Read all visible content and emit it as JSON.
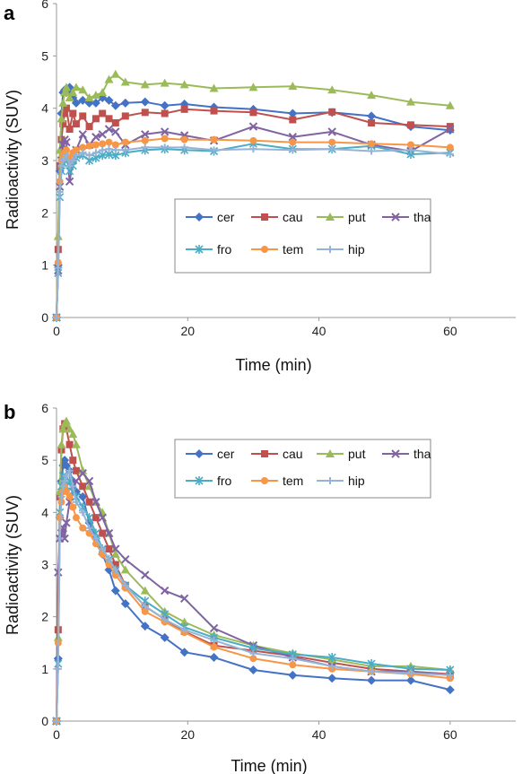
{
  "chart_data": [
    {
      "type": "line",
      "panel_label": "a",
      "xlabel": "Time (min)",
      "ylabel": "Radioactivity (SUV)",
      "xlim": [
        0,
        70
      ],
      "ylim": [
        0,
        6
      ],
      "xticks": [
        "0",
        "20",
        "40",
        "60"
      ],
      "yticks": [
        "0",
        "1",
        "2",
        "3",
        "4",
        "5",
        "6"
      ],
      "grid": false,
      "legend": "center-right, 4 columns",
      "x": [
        0,
        0.25,
        0.5,
        0.75,
        1,
        1.25,
        1.5,
        2,
        2.5,
        3,
        4,
        5,
        6,
        7,
        8,
        9,
        10.5,
        13.5,
        16.5,
        19.5,
        24,
        30,
        36,
        42,
        48,
        54,
        60
      ],
      "series": [
        {
          "name": "cer",
          "color": "#4472C4",
          "marker": "diamond",
          "values": [
            0,
            1.0,
            2.8,
            3.9,
            4.3,
            4.35,
            4.3,
            4.4,
            4.2,
            4.1,
            4.15,
            4.1,
            4.1,
            4.2,
            4.15,
            4.05,
            4.1,
            4.12,
            4.05,
            4.08,
            4.02,
            3.98,
            3.9,
            3.92,
            3.85,
            3.65,
            3.58
          ]
        },
        {
          "name": "cau",
          "color": "#C0504D",
          "marker": "square",
          "values": [
            0,
            1.3,
            2.9,
            3.4,
            3.7,
            3.9,
            4.0,
            3.6,
            3.9,
            3.7,
            3.85,
            3.65,
            3.8,
            3.9,
            3.8,
            3.72,
            3.85,
            3.92,
            3.9,
            3.98,
            3.95,
            3.92,
            3.78,
            3.93,
            3.72,
            3.68,
            3.65
          ]
        },
        {
          "name": "put",
          "color": "#9BBB59",
          "marker": "triangle",
          "values": [
            0,
            1.55,
            3.2,
            3.8,
            4.1,
            4.3,
            4.4,
            4.2,
            4.3,
            4.4,
            4.35,
            4.2,
            4.25,
            4.3,
            4.55,
            4.65,
            4.5,
            4.45,
            4.48,
            4.45,
            4.38,
            4.4,
            4.42,
            4.35,
            4.25,
            4.12,
            4.05
          ]
        },
        {
          "name": "tha",
          "color": "#8064A2",
          "marker": "x",
          "values": [
            0,
            0.9,
            2.5,
            3.0,
            3.3,
            3.4,
            3.35,
            2.6,
            3.0,
            3.2,
            3.5,
            3.3,
            3.45,
            3.5,
            3.6,
            3.55,
            3.3,
            3.5,
            3.55,
            3.48,
            3.38,
            3.65,
            3.45,
            3.55,
            3.3,
            3.18,
            3.6
          ]
        },
        {
          "name": "fro",
          "color": "#4BACC6",
          "marker": "asterisk",
          "values": [
            0,
            0.85,
            2.3,
            2.8,
            2.95,
            3.0,
            3.05,
            2.8,
            2.9,
            3.05,
            3.1,
            3.0,
            3.05,
            3.1,
            3.12,
            3.1,
            3.15,
            3.2,
            3.22,
            3.2,
            3.18,
            3.32,
            3.22,
            3.22,
            3.28,
            3.12,
            3.15
          ]
        },
        {
          "name": "tem",
          "color": "#F79646",
          "marker": "circle",
          "values": [
            0,
            1.05,
            2.6,
            3.0,
            3.1,
            3.15,
            3.2,
            3.05,
            3.15,
            3.2,
            3.25,
            3.28,
            3.3,
            3.32,
            3.35,
            3.3,
            3.35,
            3.38,
            3.42,
            3.4,
            3.4,
            3.38,
            3.35,
            3.35,
            3.32,
            3.3,
            3.25
          ]
        },
        {
          "name": "hip",
          "color": "#95B3D7",
          "marker": "plus",
          "values": [
            0,
            0.95,
            2.4,
            2.9,
            3.0,
            3.05,
            3.1,
            2.9,
            3.0,
            3.1,
            3.15,
            3.1,
            3.15,
            3.2,
            3.22,
            3.2,
            3.2,
            3.25,
            3.25,
            3.25,
            3.2,
            3.22,
            3.2,
            3.22,
            3.18,
            3.2,
            3.12
          ]
        }
      ]
    },
    {
      "type": "line",
      "panel_label": "b",
      "xlabel": "Time (min)",
      "ylabel": "Radioactivity (SUV)",
      "xlim": [
        0,
        70
      ],
      "ylim": [
        0,
        6
      ],
      "xticks": [
        "0",
        "20",
        "40",
        "60"
      ],
      "yticks": [
        "0",
        "1",
        "2",
        "3",
        "4",
        "5",
        "6"
      ],
      "grid": false,
      "legend": "top-right, 4 columns",
      "x": [
        0,
        0.25,
        0.5,
        0.75,
        1,
        1.25,
        1.5,
        2,
        2.5,
        3,
        4,
        5,
        6,
        7,
        8,
        9,
        10.5,
        13.5,
        16.5,
        19.5,
        24,
        30,
        36,
        42,
        48,
        54,
        60
      ],
      "series": [
        {
          "name": "cer",
          "color": "#4472C4",
          "marker": "diamond",
          "values": [
            0,
            1.2,
            3.9,
            4.6,
            4.9,
            5.0,
            4.9,
            4.8,
            4.6,
            4.4,
            4.3,
            3.8,
            3.5,
            3.2,
            2.9,
            2.5,
            2.25,
            1.82,
            1.6,
            1.32,
            1.22,
            0.98,
            0.88,
            0.82,
            0.78,
            0.78,
            0.6
          ]
        },
        {
          "name": "cau",
          "color": "#C0504D",
          "marker": "square",
          "values": [
            0,
            1.75,
            4.3,
            5.2,
            5.6,
            5.7,
            5.6,
            5.3,
            5.0,
            4.8,
            4.5,
            4.2,
            3.9,
            3.6,
            3.3,
            3.0,
            2.6,
            2.2,
            1.95,
            1.72,
            1.45,
            1.35,
            1.25,
            1.12,
            1.0,
            0.95,
            0.9
          ]
        },
        {
          "name": "put",
          "color": "#9BBB59",
          "marker": "triangle",
          "values": [
            0,
            1.6,
            4.4,
            5.3,
            5.6,
            5.7,
            5.75,
            5.6,
            5.5,
            5.3,
            4.8,
            4.5,
            4.2,
            4.0,
            3.6,
            3.2,
            2.9,
            2.5,
            2.1,
            1.9,
            1.65,
            1.45,
            1.3,
            1.18,
            1.05,
            1.05,
            0.98
          ]
        },
        {
          "name": "tha",
          "color": "#8064A2",
          "marker": "x",
          "values": [
            0,
            2.85,
            3.5,
            3.6,
            3.7,
            3.5,
            3.8,
            4.2,
            4.4,
            4.6,
            4.75,
            4.6,
            4.2,
            3.9,
            3.6,
            3.3,
            3.1,
            2.8,
            2.5,
            2.35,
            1.78,
            1.45,
            1.22,
            1.05,
            0.95,
            0.95,
            0.88
          ]
        },
        {
          "name": "fro",
          "color": "#4BACC6",
          "marker": "asterisk",
          "values": [
            0,
            1.1,
            4.0,
            4.5,
            4.7,
            4.6,
            4.5,
            4.6,
            4.4,
            4.3,
            4.1,
            3.9,
            3.6,
            3.3,
            3.1,
            2.9,
            2.6,
            2.3,
            2.05,
            1.8,
            1.6,
            1.4,
            1.28,
            1.22,
            1.1,
            1.0,
            0.98
          ]
        },
        {
          "name": "tem",
          "color": "#F79646",
          "marker": "circle",
          "values": [
            0,
            1.5,
            3.9,
            4.2,
            4.4,
            4.5,
            4.4,
            4.3,
            4.1,
            3.9,
            3.7,
            3.6,
            3.4,
            3.2,
            3.0,
            2.8,
            2.55,
            2.1,
            1.9,
            1.7,
            1.42,
            1.2,
            1.08,
            1.0,
            0.95,
            0.9,
            0.82
          ]
        },
        {
          "name": "hip",
          "color": "#95B3D7",
          "marker": "plus",
          "values": [
            0,
            1.0,
            3.5,
            4.3,
            4.5,
            4.6,
            4.7,
            4.8,
            4.5,
            4.2,
            4.0,
            3.7,
            3.5,
            3.3,
            3.1,
            2.9,
            2.6,
            2.2,
            1.95,
            1.75,
            1.55,
            1.3,
            1.2,
            1.05,
            0.95,
            0.92,
            0.88
          ]
        }
      ]
    }
  ]
}
